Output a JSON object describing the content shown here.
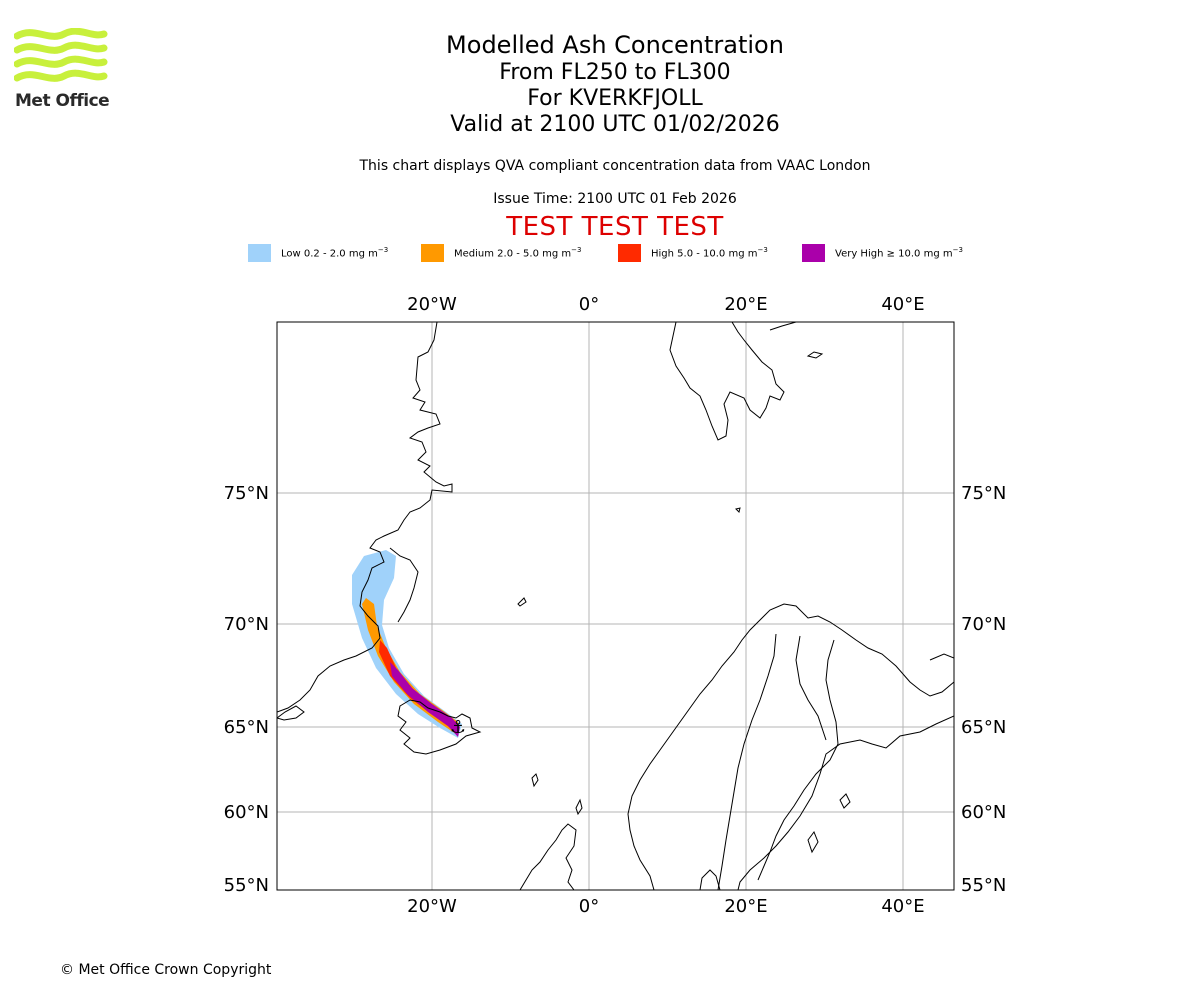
{
  "logo": {
    "text": "Met Office",
    "color": "#c8f03c"
  },
  "title": {
    "line1": "Modelled Ash Concentration",
    "line2": "From FL250 to FL300",
    "line3": "For KVERKFJOLL",
    "line4": "Valid at 2100 UTC 01/02/2026"
  },
  "subtitle": "This chart displays QVA compliant concentration data from VAAC London",
  "issue_time": "Issue Time: 2100 UTC 01 Feb 2026",
  "test_banner": "TEST TEST TEST",
  "legend": [
    {
      "label": "Low 0.2 - 2.0 mg m",
      "color": "#a0d2fa"
    },
    {
      "label": "Medium 2.0 - 5.0 mg m",
      "color": "#ff9900"
    },
    {
      "label": "High 5.0 - 10.0 mg m",
      "color": "#ff2a00"
    },
    {
      "label": "Very High ≥ 10.0 mg m",
      "color": "#aa00aa"
    }
  ],
  "legend_exponent": "−3",
  "map": {
    "lon_ticks": [
      "20°W",
      "0°",
      "20°E",
      "40°E"
    ],
    "lat_ticks": [
      "75°N",
      "70°N",
      "65°N",
      "60°N",
      "55°N"
    ],
    "volcano_symbol": "⚓",
    "grid_color": "#b4b4b4"
  },
  "copyright": "© Met Office Crown Copyright"
}
